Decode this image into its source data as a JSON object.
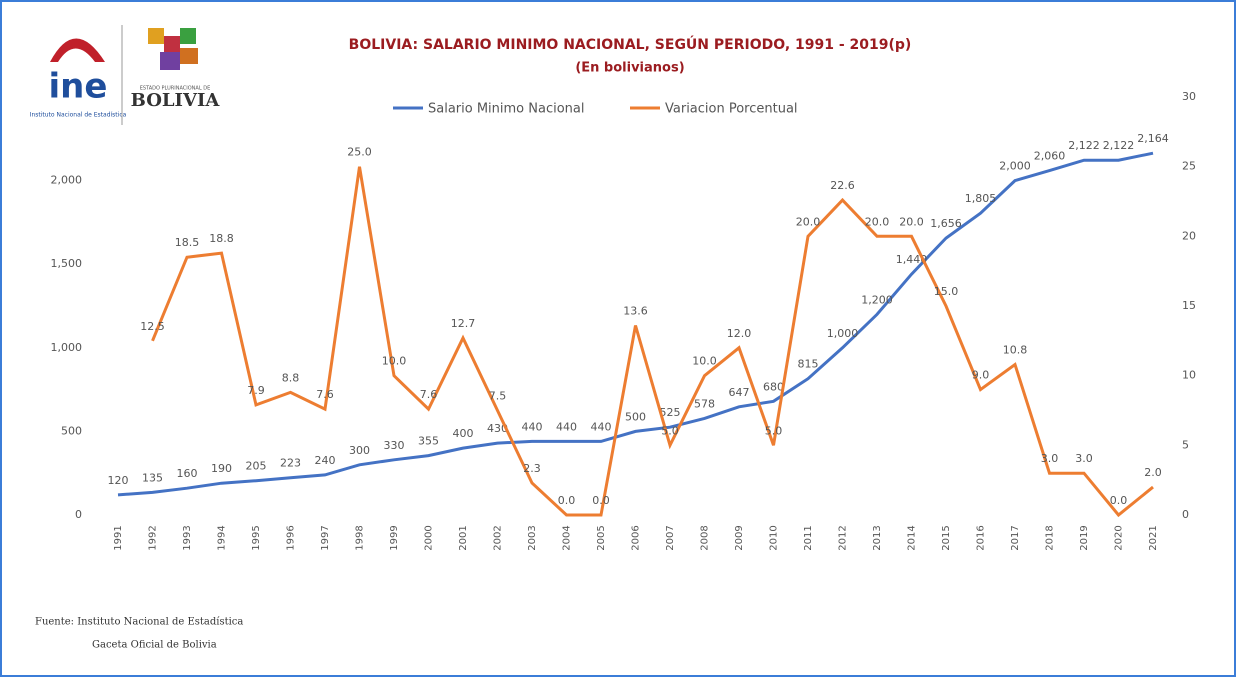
{
  "logo": {
    "ine": "ine",
    "ine_caption": "Instituto Nacional de Estadística",
    "state": "ESTADO PLURINACIONAL DE",
    "country": "BOLIVIA"
  },
  "chart_data": {
    "type": "line",
    "title": "BOLIVIA: SALARIO MINIMO NACIONAL, SEGÚN PERIODO, 1991 - 2019(p)",
    "subtitle": "(En bolivianos)",
    "categories": [
      "1991",
      "1992",
      "1993",
      "1994",
      "1995",
      "1996",
      "1997",
      "1998",
      "1999",
      "2000",
      "2001",
      "2002",
      "2003",
      "2004",
      "2005",
      "2006",
      "2007",
      "2008",
      "2009",
      "2010",
      "2011",
      "2012",
      "2013",
      "2014",
      "2015",
      "2016",
      "2017",
      "2018",
      "2019",
      "2020",
      "2021"
    ],
    "series": [
      {
        "name": "Salario Minimo Nacional",
        "color": "#4472c4",
        "values": [
          120,
          135,
          160,
          190,
          205,
          223,
          240,
          300,
          330,
          355,
          400,
          430,
          440,
          440,
          440,
          500,
          525,
          578,
          647,
          680,
          815,
          1000,
          1200,
          1440,
          1656,
          1805,
          2000,
          2060,
          2122,
          2122,
          2164
        ],
        "value_labels": [
          "120",
          "135",
          "160",
          "190",
          "205",
          "223",
          "240",
          "300",
          "330",
          "355",
          "400",
          "430",
          "440",
          "440",
          "440",
          "500",
          "525",
          "578",
          "647",
          "680",
          "815",
          "1,000",
          "1,200",
          "1,440",
          "1,656",
          "1,805",
          "2,000",
          "2,060",
          "2,122",
          "2,122",
          "2,164"
        ]
      },
      {
        "name": "Variacion Porcentual",
        "color": "#ed7d31",
        "axis": "y2",
        "values": [
          null,
          12.5,
          18.5,
          18.8,
          7.9,
          8.8,
          7.6,
          25,
          10,
          7.6,
          12.7,
          7.5,
          2.3,
          0,
          0,
          13.6,
          5,
          10,
          12,
          5,
          20,
          22.6,
          20,
          20,
          15,
          9,
          10.8,
          3,
          3,
          0,
          2
        ],
        "value_labels": [
          null,
          "12.5",
          "18.5",
          "18.8",
          "7.9",
          "8.8",
          "7.6",
          "25.0",
          "10.0",
          "7.6",
          "12.7",
          "7.5",
          "2.3",
          "0.0",
          "0.0",
          "13.6",
          "5.0",
          "10.0",
          "12.0",
          "5.0",
          "20.0",
          "22.6",
          "20.0",
          "20.0",
          "15.0",
          "9.0",
          "10.8",
          "3.0",
          "3.0",
          "0.0",
          "2.0"
        ]
      }
    ],
    "ylim": [
      0,
      2500
    ],
    "yticks": [
      0,
      500,
      {
        "value": 1000,
        "label": "1,000"
      },
      {
        "value": 1500,
        "label": "1,500"
      },
      {
        "value": 2000,
        "label": "2,000"
      }
    ],
    "y2lim": [
      0,
      30
    ],
    "y2ticks": [
      0,
      5,
      10,
      15,
      20,
      25,
      30
    ],
    "legend": "top",
    "source": [
      "Fuente: Instituto Nacional de Estadística",
      "Gaceta Oficial de Bolivia"
    ]
  }
}
